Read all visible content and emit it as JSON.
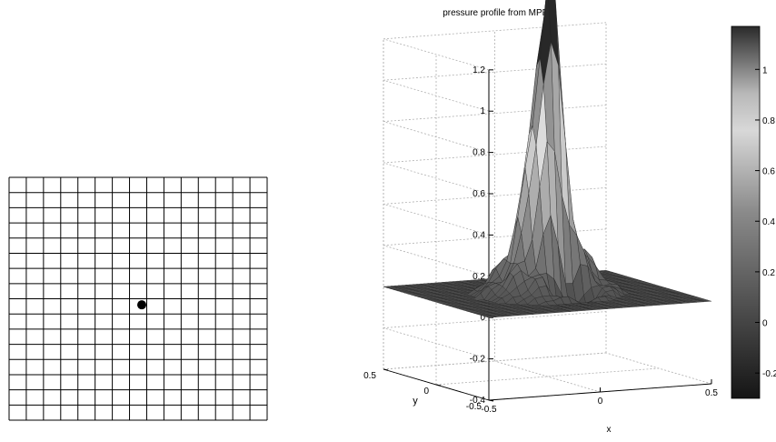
{
  "grid_panel": {
    "rows": 16,
    "cols": 15,
    "marker": {
      "row": 7.5,
      "col": 7.5
    }
  },
  "chart_data": {
    "type": "surface",
    "title": "pressure profile from MPF",
    "xlabel": "x",
    "ylabel": "y",
    "zlabel": "",
    "x_ticks": [
      "-0.5",
      "0",
      "0.5"
    ],
    "y_ticks": [
      "0.5",
      "0",
      "-0.5"
    ],
    "z_ticks": [
      "1.2",
      "1",
      "0.8",
      "0.6",
      "0.4",
      "0.2",
      "0",
      "-0.2",
      "-0.4"
    ],
    "xlim": [
      -0.5,
      0.5
    ],
    "ylim": [
      -0.5,
      0.5
    ],
    "zlim": [
      -0.4,
      1.2
    ],
    "grid": true,
    "colormap": "gray",
    "colorbar": {
      "range": [
        -0.3,
        1.17
      ],
      "ticks": [
        "1",
        "0.8",
        "0.6",
        "0.4",
        "0.2",
        "0",
        "-0.2"
      ]
    },
    "peak": {
      "x": 0.0,
      "y": 0.0,
      "z": 1.12
    },
    "min": {
      "z": -0.4
    }
  },
  "colors": {
    "background": "#ffffff",
    "axis": "#000000",
    "gridline": "#b0b0b0"
  }
}
